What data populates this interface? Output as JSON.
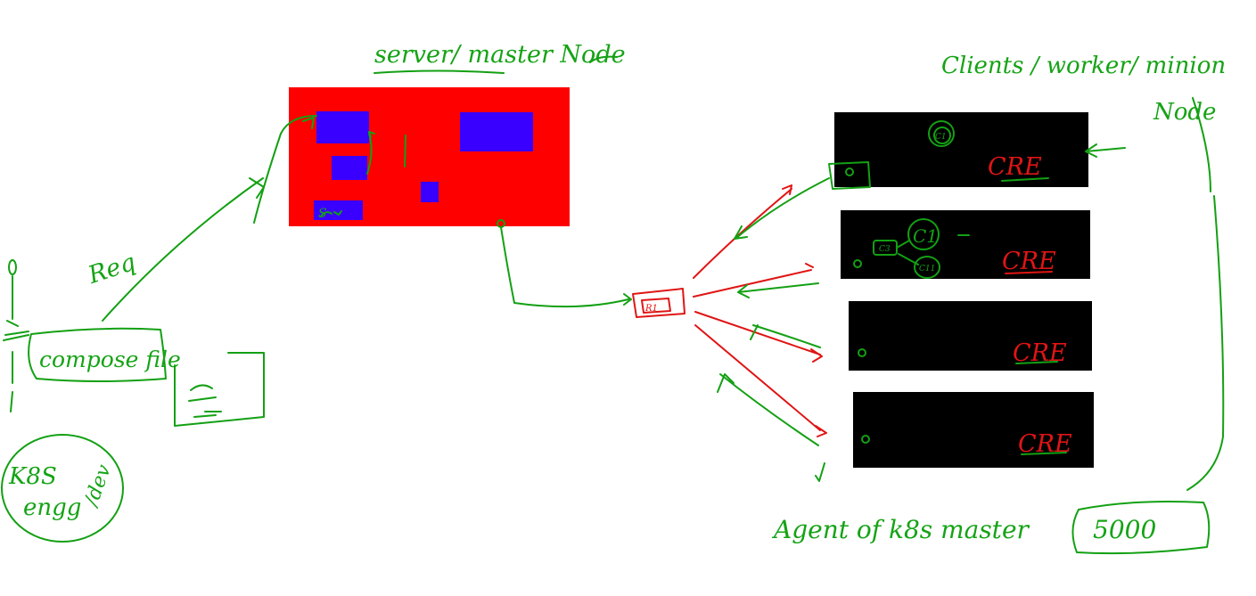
{
  "labels": {
    "master_title": "server/ master Node",
    "clients_title_line1": "Clients / worker/ minion",
    "clients_title_line2": "Node",
    "req": "Req",
    "compose_file": "compose file",
    "k8s_engg_line1": "K8S",
    "k8s_engg_line2": "engg",
    "k8s_engg_line3": "/dev",
    "agent": "Agent of k8s master",
    "count": "5000",
    "master_small_block": "S",
    "router": "R1",
    "runtime": [
      "CRE",
      "CRE",
      "CRE",
      "CRE"
    ],
    "container_big": "C1",
    "containers": [
      "C3",
      "C1",
      "C11"
    ]
  },
  "colors": {
    "ink_green": "#13a013",
    "ink_red": "#e01515",
    "master_node": "#ff0000",
    "master_blocks": "#3a00ff",
    "worker_node": "#000000"
  }
}
